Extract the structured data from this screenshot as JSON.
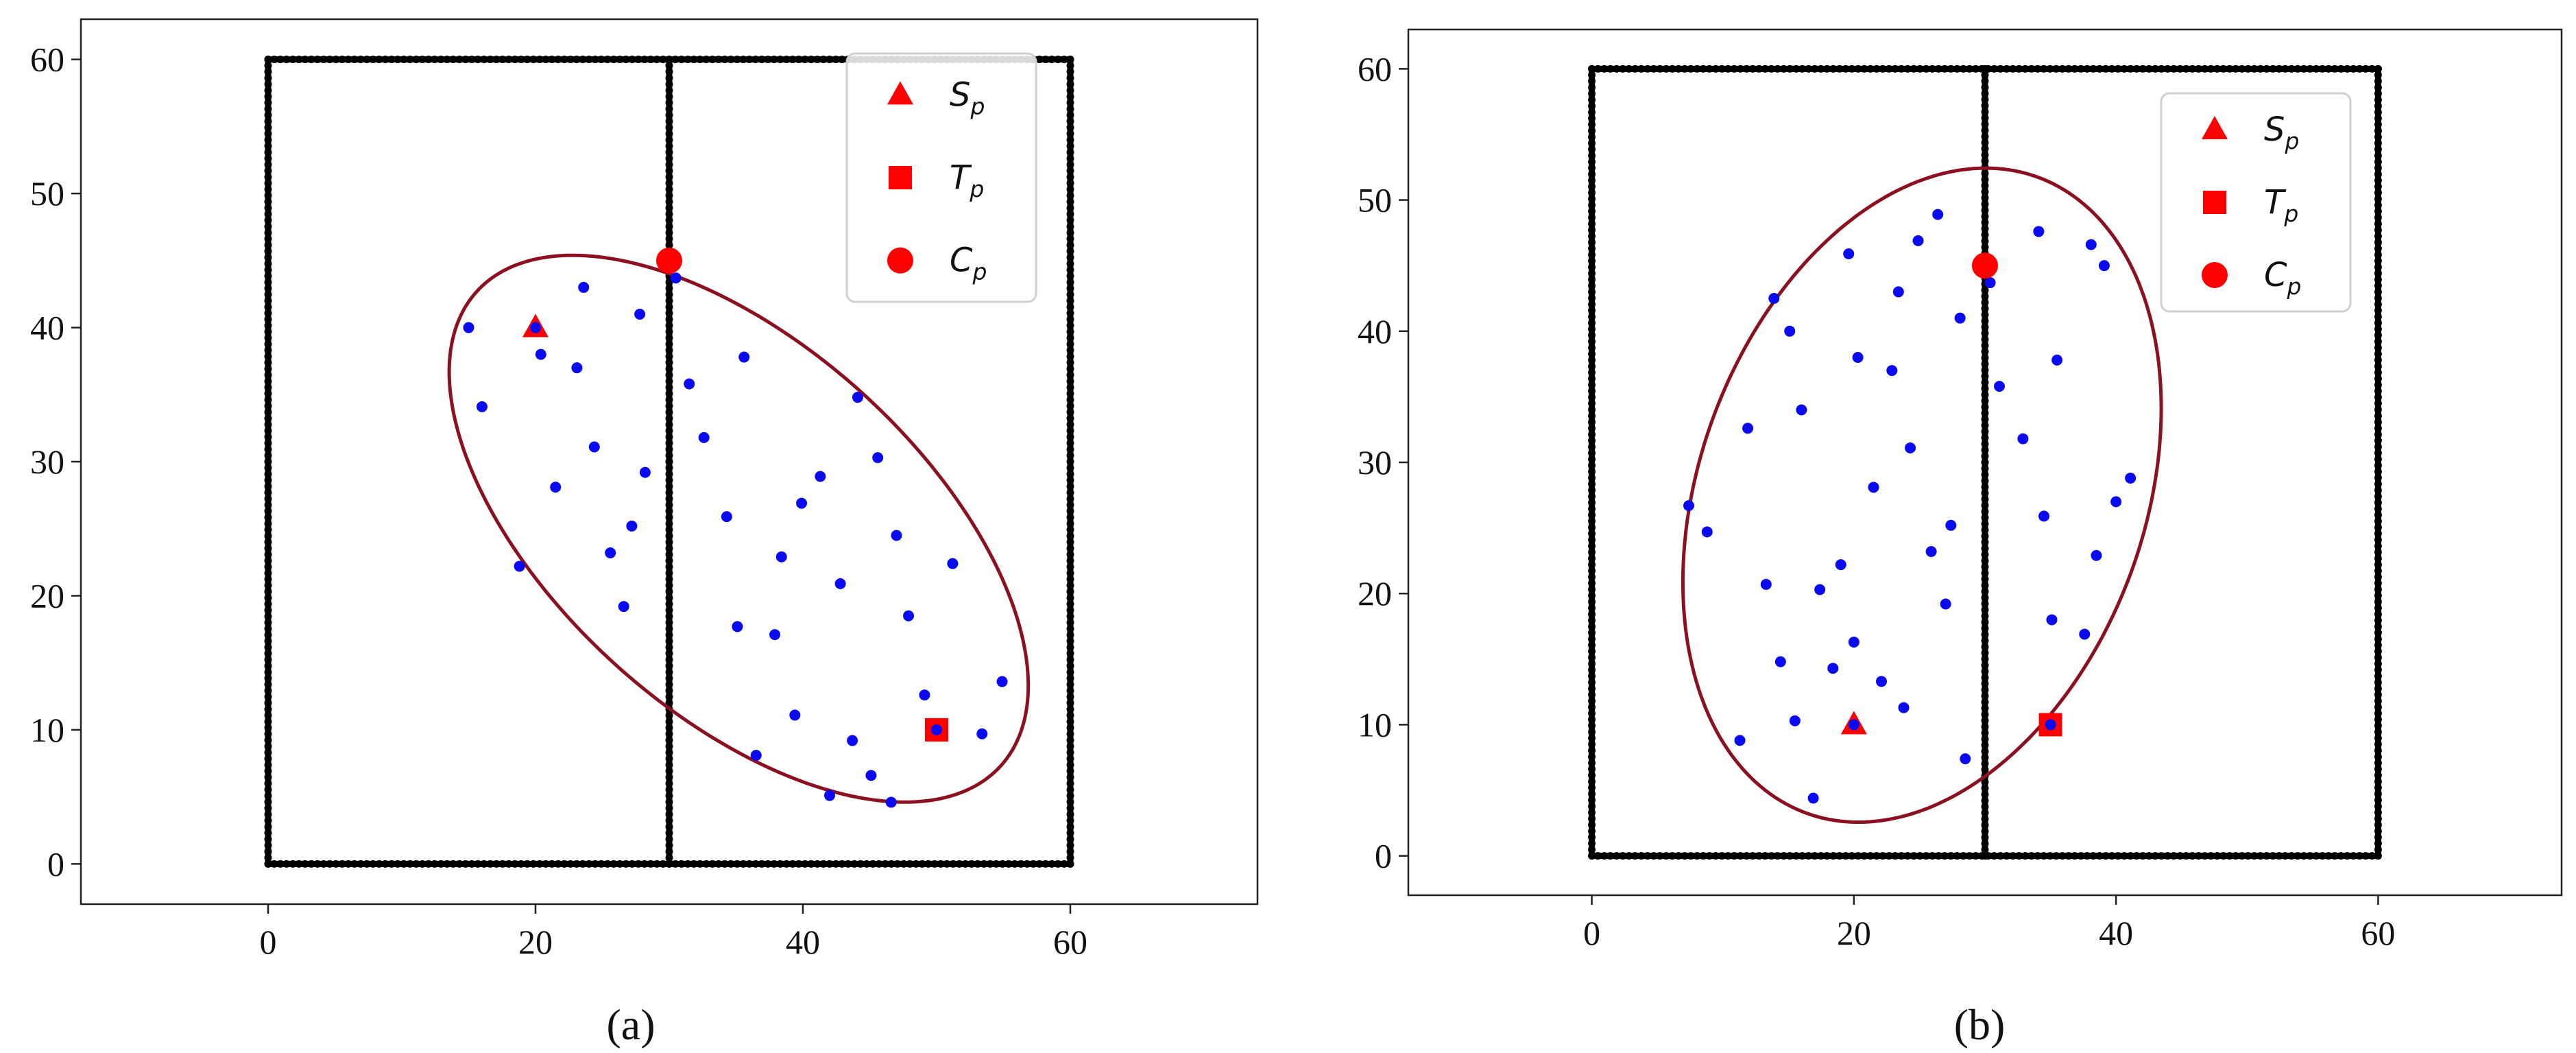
{
  "chart_data": [
    {
      "type": "scatter",
      "caption": "(a)",
      "xlim": [
        -14,
        74
      ],
      "ylim": [
        -3,
        63
      ],
      "x_ticks": [
        0,
        20,
        40,
        60
      ],
      "y_ticks": [
        0,
        10,
        20,
        30,
        40,
        50,
        60
      ],
      "legend_position": "top-right",
      "legend": [
        {
          "symbol": "triangle",
          "base": "S",
          "sub": "p"
        },
        {
          "symbol": "square",
          "base": "T",
          "sub": "p"
        },
        {
          "symbol": "circle",
          "base": "C",
          "sub": "p"
        }
      ],
      "walls": [
        {
          "x": [
            0,
            60
          ],
          "y": [
            0,
            0
          ]
        },
        {
          "x": [
            0,
            60
          ],
          "y": [
            60,
            60
          ]
        },
        {
          "x": [
            0,
            0
          ],
          "y": [
            0,
            60
          ]
        },
        {
          "x": [
            60,
            60
          ],
          "y": [
            0,
            60
          ]
        },
        {
          "x": [
            30,
            30
          ],
          "y": [
            0,
            30
          ]
        },
        {
          "x": [
            30,
            30
          ],
          "y": [
            30,
            60
          ]
        }
      ],
      "ellipse": {
        "cx": 35.2,
        "cy": 25.0,
        "a": 26.4,
        "b": 13.7,
        "angle_deg": -42
      },
      "start": {
        "x": 20,
        "y": 40
      },
      "target": {
        "x": 50,
        "y": 10
      },
      "center": {
        "x": 30,
        "y": 45
      },
      "samples": {
        "x": [
          15,
          16,
          18.8,
          20.4,
          21.5,
          23.1,
          23.6,
          24.4,
          25.6,
          26.6,
          27.2,
          27.8,
          28.2,
          30.5,
          31.5,
          32.6,
          34.3,
          35.1,
          35.6,
          36.5,
          37.9,
          38.4,
          39.4,
          39.9,
          41.3,
          42,
          42.8,
          43.7,
          44.1,
          45.1,
          45.6,
          46.6,
          47,
          47.9,
          49.1,
          50.1,
          51.2,
          53.4,
          54.9
        ],
        "y": [
          40,
          34.1,
          22.2,
          38,
          28.1,
          37,
          43,
          31.1,
          23.2,
          19.2,
          25.2,
          41,
          29.2,
          43.7,
          35.8,
          31.8,
          25.9,
          17.7,
          37.8,
          8.1,
          17.1,
          22.9,
          11.1,
          26.9,
          28.9,
          5.1,
          20.9,
          9.2,
          34.8,
          6.6,
          30.3,
          4.6,
          24.5,
          18.5,
          12.6,
          10,
          22.4,
          9.7,
          13.6
        ]
      }
    },
    {
      "type": "scatter",
      "caption": "(b)",
      "xlim": [
        -14,
        74
      ],
      "ylim": [
        -3,
        63
      ],
      "x_ticks": [
        0,
        20,
        40,
        60
      ],
      "y_ticks": [
        0,
        10,
        20,
        30,
        40,
        50,
        60
      ],
      "legend_position": "top-right",
      "legend": [
        {
          "symbol": "triangle",
          "base": "S",
          "sub": "p"
        },
        {
          "symbol": "square",
          "base": "T",
          "sub": "p"
        },
        {
          "symbol": "circle",
          "base": "C",
          "sub": "p"
        }
      ],
      "walls": [
        {
          "x": [
            0,
            60
          ],
          "y": [
            0,
            0
          ]
        },
        {
          "x": [
            0,
            60
          ],
          "y": [
            60,
            60
          ]
        },
        {
          "x": [
            0,
            0
          ],
          "y": [
            0,
            60
          ]
        },
        {
          "x": [
            60,
            60
          ],
          "y": [
            0,
            60
          ]
        },
        {
          "x": [
            30,
            30
          ],
          "y": [
            0,
            30
          ]
        },
        {
          "x": [
            30,
            30
          ],
          "y": [
            30,
            60
          ]
        }
      ],
      "ellipse": {
        "cx": 25.2,
        "cy": 27.5,
        "a": 25.8,
        "b": 17.0,
        "angle_deg": 70
      },
      "start": {
        "x": 20,
        "y": 10
      },
      "target": {
        "x": 35,
        "y": 10
      },
      "center": {
        "x": 30,
        "y": 45
      },
      "samples": {
        "x": [
          7.4,
          8.8,
          11.3,
          11.9,
          13.3,
          13.9,
          14.4,
          15.1,
          15.5,
          16,
          16.9,
          17.4,
          18.4,
          19,
          19.6,
          20,
          20.3,
          21.5,
          22.1,
          22.9,
          23.4,
          23.8,
          24.3,
          24.9,
          25.9,
          26.4,
          27,
          27.4,
          28.1,
          28.5,
          30.4,
          31.1,
          32.9,
          34.1,
          34.5,
          35.1,
          35.5,
          37.6,
          38.1,
          38.5,
          39.1,
          40,
          41.1
        ],
        "y": [
          26.7,
          24.7,
          8.8,
          32.6,
          20.7,
          42.5,
          14.8,
          40,
          10.3,
          34,
          4.4,
          20.3,
          14.3,
          22.2,
          45.9,
          16.3,
          38,
          28.1,
          13.3,
          37,
          43,
          11.3,
          31.1,
          46.9,
          23.2,
          48.9,
          19.2,
          25.2,
          41,
          7.4,
          43.7,
          35.8,
          31.8,
          47.6,
          25.9,
          18,
          37.8,
          16.9,
          46.6,
          22.9,
          45,
          27,
          28.8
        ]
      }
    }
  ]
}
